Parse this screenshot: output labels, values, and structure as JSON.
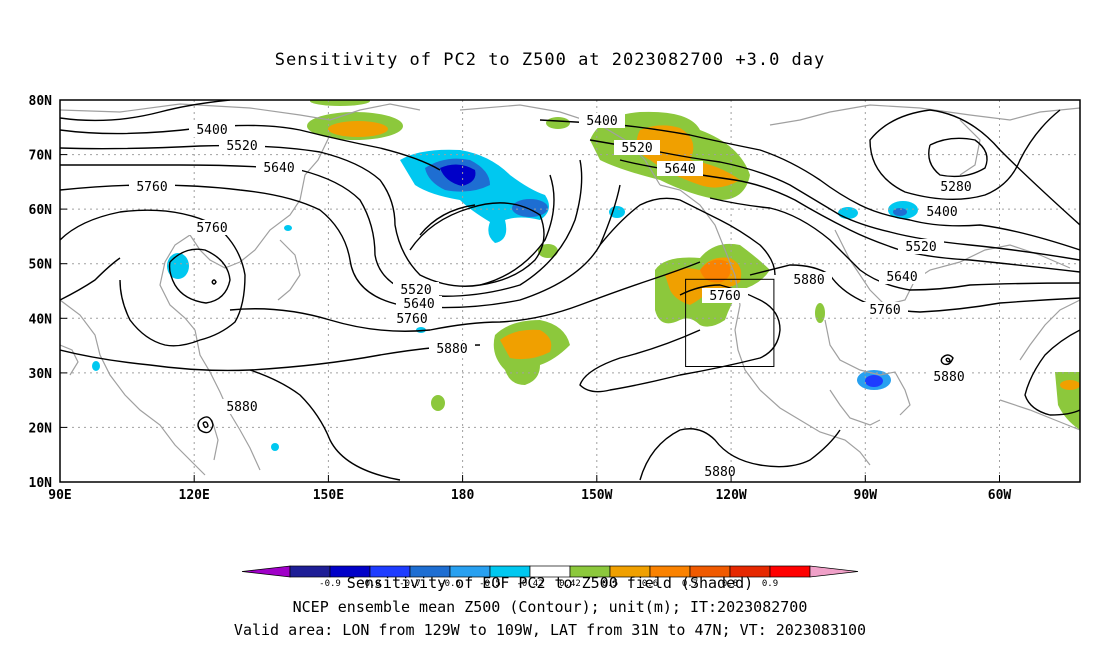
{
  "title": "Sensitivity of PC2 to Z500 at 2023082700 +3.0 day",
  "lat_labels": [
    "80N",
    "70N",
    "60N",
    "50N",
    "40N",
    "30N",
    "20N",
    "10N"
  ],
  "lon_labels": [
    "90E",
    "120E",
    "150E",
    "180",
    "150W",
    "120W",
    "90W",
    "60W"
  ],
  "contour_labels": [
    "5400",
    "5520",
    "5640",
    "5760",
    "5760",
    "5520",
    "5640",
    "5760",
    "5880",
    "5880",
    "5400",
    "5520",
    "5640",
    "5760",
    "5880",
    "5280",
    "5400",
    "5520",
    "5640",
    "5760",
    "5880",
    "5880"
  ],
  "colorbar": {
    "ticks": [
      "-0.9",
      "-0.8",
      "-0.7",
      "-0.6",
      "-0.5",
      "-0.42",
      "0.42",
      "0.5",
      "0.6",
      "0.7",
      "0.8",
      "0.9"
    ],
    "colors": [
      "#a000c8",
      "#1e1e96",
      "#0000c8",
      "#1e3cff",
      "#1e6ed2",
      "#28a0f0",
      "#00c8f0",
      "#ffffff",
      "#8cc83c",
      "#f0a000",
      "#fa8200",
      "#f05a00",
      "#e62800",
      "#ff0000",
      "#f0a0c8"
    ]
  },
  "captions": {
    "line1": "Sensitivity of EOF PC2 to Z500 field (Shaded)",
    "line2": "NCEP ensemble mean Z500 (Contour); unit(m); IT:2023082700",
    "line3": "Valid area: LON from 129W to 109W, LAT from 31N to 47N; VT: 2023083100"
  }
}
